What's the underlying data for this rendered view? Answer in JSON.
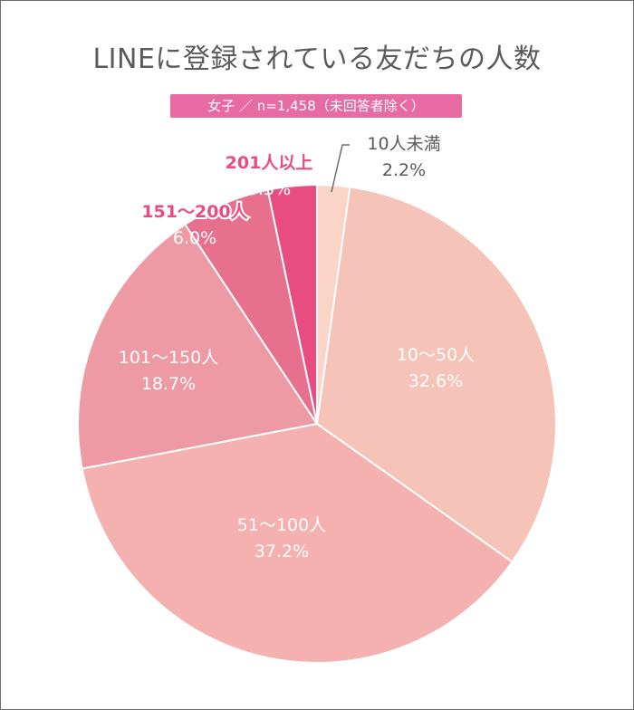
{
  "title": "LINEに登録されている友だちの人数",
  "subtitle": "女子 ／ n=1,458（未回答者除く）",
  "chart_data": {
    "type": "pie",
    "title": "LINEに登録されている友だちの人数",
    "subtitle": "女子 ／ n=1,458（未回答者除く）",
    "categories": [
      "10人未満",
      "10〜50人",
      "51〜100人",
      "101〜150人",
      "151〜200人",
      "201人以上"
    ],
    "values": [
      2.2,
      32.6,
      37.2,
      18.7,
      6.0,
      3.3
    ],
    "value_labels": [
      "2.2%",
      "32.6%",
      "37.2%",
      "18.7%",
      "6.0%",
      "3.3%"
    ],
    "colors": [
      "#fad4c4",
      "#f6c3b9",
      "#f5b0b0",
      "#ee9aa4",
      "#e8708f",
      "#e84c80"
    ],
    "start_angle_deg": 0,
    "direction": "clockwise",
    "legend": "none"
  }
}
